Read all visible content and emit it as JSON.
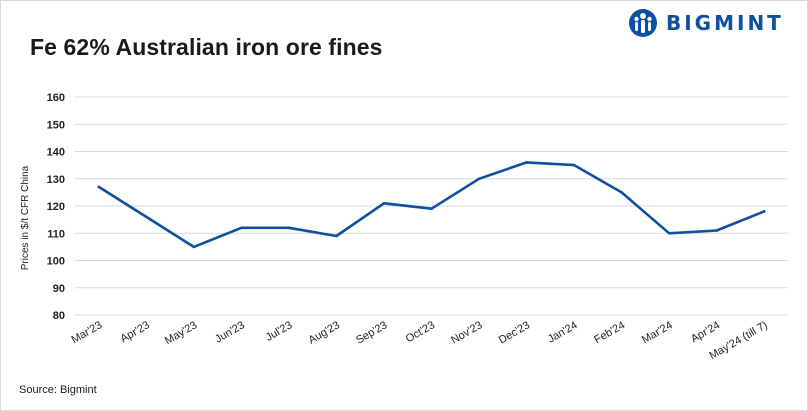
{
  "title": "Fe 62% Australian iron ore fines",
  "brand": {
    "name": "BIGMINT",
    "color": "#0e4fa0"
  },
  "source": "Source: Bigmint",
  "chart_data": {
    "type": "line",
    "title": "Fe 62% Australian iron ore fines",
    "xlabel": "",
    "ylabel": "Prices in $/t CFR China",
    "categories": [
      "Mar'23",
      "Apr'23",
      "May'23",
      "Jun'23",
      "Jul'23",
      "Aug'23",
      "Sep'23",
      "Oct'23",
      "Nov'23",
      "Dec'23",
      "Jan'24",
      "Feb'24",
      "Mar'24",
      "Apr'24",
      "May'24 (till 7)"
    ],
    "series": [
      {
        "values": [
          127,
          116,
          105,
          112,
          112,
          109,
          121,
          119,
          130,
          136,
          135,
          125,
          110,
          111,
          118
        ],
        "color": "#0e4fa0"
      }
    ],
    "ylim": [
      80,
      160
    ],
    "yticks": [
      80,
      90,
      100,
      110,
      120,
      130,
      140,
      150,
      160
    ],
    "grid": true,
    "legend": "none"
  }
}
